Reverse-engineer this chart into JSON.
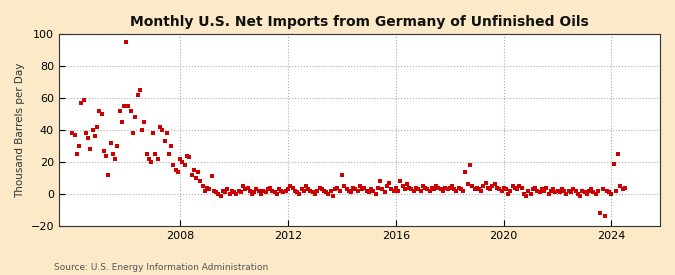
{
  "title": "Monthly U.S. Net Imports from Germany of Unfinished Oils",
  "ylabel": "Thousand Barrels per Day",
  "source": "Source: U.S. Energy Information Administration",
  "outer_bg": "#fce9c8",
  "plot_bg": "#ffffff",
  "marker_color": "#cc0000",
  "ylim": [
    -20,
    100
  ],
  "yticks": [
    -20,
    0,
    20,
    40,
    60,
    80,
    100
  ],
  "xticks": [
    2008,
    2012,
    2016,
    2020,
    2024
  ],
  "xlim": [
    2003.5,
    2025.8
  ],
  "data": [
    [
      2004.0,
      38
    ],
    [
      2004.08,
      37
    ],
    [
      2004.17,
      25
    ],
    [
      2004.25,
      30
    ],
    [
      2004.33,
      57
    ],
    [
      2004.42,
      59
    ],
    [
      2004.5,
      38
    ],
    [
      2004.58,
      35
    ],
    [
      2004.67,
      28
    ],
    [
      2004.75,
      40
    ],
    [
      2004.83,
      36
    ],
    [
      2004.92,
      42
    ],
    [
      2005.0,
      52
    ],
    [
      2005.08,
      50
    ],
    [
      2005.17,
      27
    ],
    [
      2005.25,
      24
    ],
    [
      2005.33,
      12
    ],
    [
      2005.42,
      32
    ],
    [
      2005.5,
      25
    ],
    [
      2005.58,
      22
    ],
    [
      2005.67,
      30
    ],
    [
      2005.75,
      52
    ],
    [
      2005.83,
      45
    ],
    [
      2005.92,
      55
    ],
    [
      2006.0,
      95
    ],
    [
      2006.08,
      55
    ],
    [
      2006.17,
      52
    ],
    [
      2006.25,
      38
    ],
    [
      2006.33,
      48
    ],
    [
      2006.42,
      62
    ],
    [
      2006.5,
      65
    ],
    [
      2006.58,
      40
    ],
    [
      2006.67,
      45
    ],
    [
      2006.75,
      25
    ],
    [
      2006.83,
      22
    ],
    [
      2006.92,
      20
    ],
    [
      2007.0,
      38
    ],
    [
      2007.08,
      25
    ],
    [
      2007.17,
      22
    ],
    [
      2007.25,
      42
    ],
    [
      2007.33,
      40
    ],
    [
      2007.42,
      33
    ],
    [
      2007.5,
      38
    ],
    [
      2007.58,
      25
    ],
    [
      2007.67,
      30
    ],
    [
      2007.75,
      18
    ],
    [
      2007.83,
      15
    ],
    [
      2007.92,
      14
    ],
    [
      2008.0,
      22
    ],
    [
      2008.08,
      20
    ],
    [
      2008.17,
      18
    ],
    [
      2008.25,
      24
    ],
    [
      2008.33,
      23
    ],
    [
      2008.42,
      12
    ],
    [
      2008.5,
      15
    ],
    [
      2008.58,
      10
    ],
    [
      2008.67,
      14
    ],
    [
      2008.75,
      8
    ],
    [
      2008.83,
      5
    ],
    [
      2008.92,
      2
    ],
    [
      2009.0,
      4
    ],
    [
      2009.08,
      3
    ],
    [
      2009.17,
      11
    ],
    [
      2009.25,
      2
    ],
    [
      2009.33,
      1
    ],
    [
      2009.42,
      0
    ],
    [
      2009.5,
      -1
    ],
    [
      2009.58,
      2
    ],
    [
      2009.67,
      1
    ],
    [
      2009.75,
      3
    ],
    [
      2009.83,
      0
    ],
    [
      2009.92,
      2
    ],
    [
      2010.0,
      1
    ],
    [
      2010.08,
      0
    ],
    [
      2010.17,
      2
    ],
    [
      2010.25,
      1
    ],
    [
      2010.33,
      5
    ],
    [
      2010.42,
      3
    ],
    [
      2010.5,
      4
    ],
    [
      2010.58,
      2
    ],
    [
      2010.67,
      0
    ],
    [
      2010.75,
      1
    ],
    [
      2010.83,
      3
    ],
    [
      2010.92,
      2
    ],
    [
      2011.0,
      0
    ],
    [
      2011.08,
      2
    ],
    [
      2011.17,
      1
    ],
    [
      2011.25,
      3
    ],
    [
      2011.33,
      4
    ],
    [
      2011.42,
      2
    ],
    [
      2011.5,
      1
    ],
    [
      2011.58,
      0
    ],
    [
      2011.67,
      3
    ],
    [
      2011.75,
      2
    ],
    [
      2011.83,
      1
    ],
    [
      2011.92,
      2
    ],
    [
      2012.0,
      3
    ],
    [
      2012.08,
      5
    ],
    [
      2012.17,
      4
    ],
    [
      2012.25,
      2
    ],
    [
      2012.33,
      1
    ],
    [
      2012.42,
      0
    ],
    [
      2012.5,
      3
    ],
    [
      2012.58,
      2
    ],
    [
      2012.67,
      5
    ],
    [
      2012.75,
      3
    ],
    [
      2012.83,
      2
    ],
    [
      2012.92,
      1
    ],
    [
      2013.0,
      0
    ],
    [
      2013.08,
      2
    ],
    [
      2013.17,
      4
    ],
    [
      2013.25,
      3
    ],
    [
      2013.33,
      2
    ],
    [
      2013.42,
      1
    ],
    [
      2013.5,
      0
    ],
    [
      2013.58,
      2
    ],
    [
      2013.67,
      -1
    ],
    [
      2013.75,
      3
    ],
    [
      2013.83,
      4
    ],
    [
      2013.92,
      2
    ],
    [
      2014.0,
      12
    ],
    [
      2014.08,
      5
    ],
    [
      2014.17,
      3
    ],
    [
      2014.25,
      2
    ],
    [
      2014.33,
      1
    ],
    [
      2014.42,
      4
    ],
    [
      2014.5,
      3
    ],
    [
      2014.58,
      2
    ],
    [
      2014.67,
      5
    ],
    [
      2014.75,
      3
    ],
    [
      2014.83,
      4
    ],
    [
      2014.92,
      2
    ],
    [
      2015.0,
      1
    ],
    [
      2015.08,
      3
    ],
    [
      2015.17,
      2
    ],
    [
      2015.25,
      0
    ],
    [
      2015.33,
      4
    ],
    [
      2015.42,
      8
    ],
    [
      2015.5,
      3
    ],
    [
      2015.58,
      1
    ],
    [
      2015.67,
      5
    ],
    [
      2015.75,
      7
    ],
    [
      2015.83,
      3
    ],
    [
      2015.92,
      2
    ],
    [
      2016.0,
      4
    ],
    [
      2016.08,
      2
    ],
    [
      2016.17,
      8
    ],
    [
      2016.25,
      5
    ],
    [
      2016.33,
      3
    ],
    [
      2016.42,
      6
    ],
    [
      2016.5,
      4
    ],
    [
      2016.58,
      3
    ],
    [
      2016.67,
      2
    ],
    [
      2016.75,
      4
    ],
    [
      2016.83,
      3
    ],
    [
      2016.92,
      2
    ],
    [
      2017.0,
      5
    ],
    [
      2017.08,
      4
    ],
    [
      2017.17,
      3
    ],
    [
      2017.25,
      2
    ],
    [
      2017.33,
      4
    ],
    [
      2017.42,
      3
    ],
    [
      2017.5,
      5
    ],
    [
      2017.58,
      4
    ],
    [
      2017.67,
      3
    ],
    [
      2017.75,
      2
    ],
    [
      2017.83,
      4
    ],
    [
      2017.92,
      3
    ],
    [
      2018.0,
      4
    ],
    [
      2018.08,
      5
    ],
    [
      2018.17,
      3
    ],
    [
      2018.25,
      2
    ],
    [
      2018.33,
      4
    ],
    [
      2018.42,
      3
    ],
    [
      2018.5,
      2
    ],
    [
      2018.58,
      14
    ],
    [
      2018.67,
      6
    ],
    [
      2018.75,
      18
    ],
    [
      2018.83,
      5
    ],
    [
      2018.92,
      3
    ],
    [
      2019.0,
      4
    ],
    [
      2019.08,
      3
    ],
    [
      2019.17,
      2
    ],
    [
      2019.25,
      5
    ],
    [
      2019.33,
      7
    ],
    [
      2019.42,
      4
    ],
    [
      2019.5,
      3
    ],
    [
      2019.58,
      5
    ],
    [
      2019.67,
      6
    ],
    [
      2019.75,
      4
    ],
    [
      2019.83,
      3
    ],
    [
      2019.92,
      2
    ],
    [
      2020.0,
      4
    ],
    [
      2020.08,
      3
    ],
    [
      2020.17,
      0
    ],
    [
      2020.25,
      2
    ],
    [
      2020.33,
      5
    ],
    [
      2020.42,
      4
    ],
    [
      2020.5,
      3
    ],
    [
      2020.58,
      5
    ],
    [
      2020.67,
      4
    ],
    [
      2020.75,
      0
    ],
    [
      2020.83,
      -1
    ],
    [
      2020.92,
      2
    ],
    [
      2021.0,
      0
    ],
    [
      2021.08,
      3
    ],
    [
      2021.17,
      4
    ],
    [
      2021.25,
      2
    ],
    [
      2021.33,
      1
    ],
    [
      2021.42,
      3
    ],
    [
      2021.5,
      2
    ],
    [
      2021.58,
      4
    ],
    [
      2021.67,
      0
    ],
    [
      2021.75,
      2
    ],
    [
      2021.83,
      3
    ],
    [
      2021.92,
      1
    ],
    [
      2022.0,
      2
    ],
    [
      2022.08,
      1
    ],
    [
      2022.17,
      3
    ],
    [
      2022.25,
      2
    ],
    [
      2022.33,
      0
    ],
    [
      2022.42,
      2
    ],
    [
      2022.5,
      1
    ],
    [
      2022.58,
      3
    ],
    [
      2022.67,
      2
    ],
    [
      2022.75,
      0
    ],
    [
      2022.83,
      -1
    ],
    [
      2022.92,
      2
    ],
    [
      2023.0,
      1
    ],
    [
      2023.08,
      0
    ],
    [
      2023.17,
      2
    ],
    [
      2023.25,
      3
    ],
    [
      2023.33,
      1
    ],
    [
      2023.42,
      0
    ],
    [
      2023.5,
      2
    ],
    [
      2023.58,
      -12
    ],
    [
      2023.67,
      3
    ],
    [
      2023.75,
      -14
    ],
    [
      2023.83,
      2
    ],
    [
      2023.92,
      1
    ],
    [
      2024.0,
      0
    ],
    [
      2024.08,
      19
    ],
    [
      2024.17,
      2
    ],
    [
      2024.25,
      25
    ],
    [
      2024.33,
      5
    ],
    [
      2024.42,
      3
    ],
    [
      2024.5,
      4
    ]
  ]
}
